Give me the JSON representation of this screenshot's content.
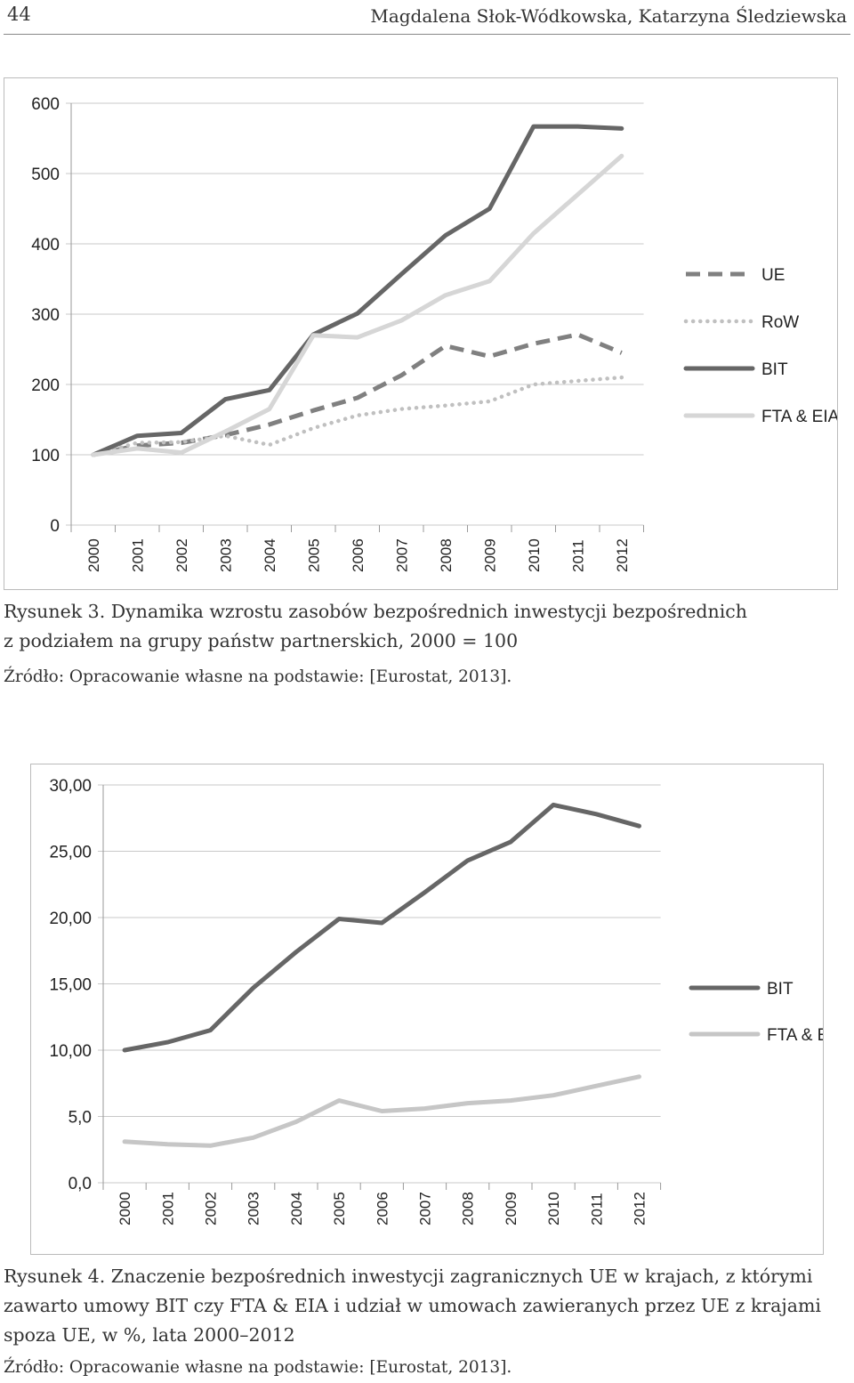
{
  "header": {
    "page_number": "44",
    "authors": "Magdalena Słok-Wódkowska, Katarzyna Śledziewska"
  },
  "figure3": {
    "caption_line1": "Rysunek 3. Dynamika wzrostu zasobów bezpośrednich inwestycji bezpośrednich",
    "caption_line2": "z podziałem na grupy państw partnerskich, 2000 = 100",
    "source": "Źródło: Opracowanie własne na podstawie: [Eurostat, 2013]."
  },
  "figure4": {
    "caption_line1": "Rysunek 4. Znaczenie bezpośrednich inwestycji zagranicznych UE w krajach, z którymi",
    "caption_line2": "zawarto umowy BIT czy FTA & EIA i udział w umowach zawieranych przez UE z krajami",
    "caption_line3": "spoza UE, w %, lata 2000–2012",
    "source": "Źródło: Opracowanie własne na podstawie: [Eurostat, 2013]."
  },
  "chart_data": [
    {
      "type": "line",
      "title": "",
      "xlabel": "",
      "ylabel": "",
      "x": [
        "2000",
        "2001",
        "2002",
        "2003",
        "2004",
        "2005",
        "2006",
        "2007",
        "2008",
        "2009",
        "2010",
        "2011",
        "2012"
      ],
      "ylim": [
        0,
        600
      ],
      "yticks": [
        "0",
        "100",
        "200",
        "300",
        "400",
        "500",
        "600"
      ],
      "legend_position": "right",
      "grid": true,
      "series": [
        {
          "name": "UE",
          "style": "dashed",
          "color": "#808080",
          "values": [
            100,
            113,
            117,
            128,
            143,
            163,
            181,
            213,
            255,
            240,
            258,
            271,
            245
          ]
        },
        {
          "name": "RoW",
          "style": "dotted",
          "color": "#c0c0c0",
          "values": [
            100,
            117,
            118,
            127,
            114,
            138,
            156,
            165,
            170,
            176,
            200,
            205,
            210
          ]
        },
        {
          "name": "BIT",
          "style": "solid",
          "color": "#666666",
          "values": [
            100,
            127,
            131,
            179,
            192,
            271,
            301,
            357,
            412,
            450,
            567,
            567,
            564
          ]
        },
        {
          "name": "FTA & EIA",
          "style": "solid",
          "color": "#d6d6d6",
          "values": [
            100,
            109,
            103,
            133,
            165,
            270,
            267,
            291,
            327,
            347,
            415,
            470,
            525
          ]
        }
      ]
    },
    {
      "type": "line",
      "title": "",
      "xlabel": "",
      "ylabel": "",
      "x": [
        "2000",
        "2001",
        "2002",
        "2003",
        "2004",
        "2005",
        "2006",
        "2007",
        "2008",
        "2009",
        "2010",
        "2011",
        "2012"
      ],
      "ylim": [
        0,
        30
      ],
      "yticks": [
        "0,0",
        "5,0",
        "10,00",
        "15,00",
        "20,00",
        "25,00",
        "30,00"
      ],
      "legend_position": "right",
      "grid": true,
      "series": [
        {
          "name": "BIT",
          "style": "solid",
          "color": "#666666",
          "values": [
            10.0,
            10.6,
            11.5,
            14.7,
            17.4,
            19.9,
            19.6,
            21.9,
            24.3,
            25.7,
            28.5,
            27.8,
            26.9
          ]
        },
        {
          "name": "FTA & EIA",
          "style": "solid",
          "color": "#c6c6c6",
          "values": [
            3.1,
            2.9,
            2.8,
            3.4,
            4.6,
            6.2,
            5.4,
            5.6,
            6.0,
            6.2,
            6.6,
            7.3,
            8.0
          ]
        }
      ]
    }
  ]
}
